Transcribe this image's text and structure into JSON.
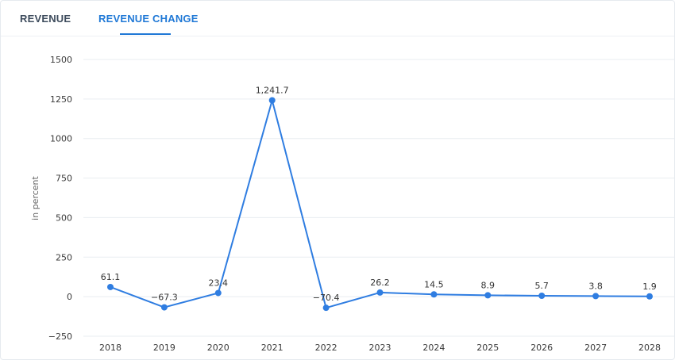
{
  "tabs": [
    {
      "label": "REVENUE",
      "active": false
    },
    {
      "label": "REVENUE CHANGE",
      "active": true
    }
  ],
  "colors": {
    "accent": "#1f78d6",
    "tab_inactive": "#3d4b5c",
    "series": "#2f7de1",
    "grid": "#e9edf1"
  },
  "chart_data": {
    "type": "line",
    "ylabel": "in percent",
    "ylim": [
      -250,
      1500
    ],
    "yticks": [
      {
        "value": 1500,
        "label": "1500"
      },
      {
        "value": 1250,
        "label": "1250"
      },
      {
        "value": 1000,
        "label": "1000"
      },
      {
        "value": 750,
        "label": "750"
      },
      {
        "value": 500,
        "label": "500"
      },
      {
        "value": 250,
        "label": "250"
      },
      {
        "value": 0,
        "label": "0"
      },
      {
        "value": -250,
        "label": "−250"
      }
    ],
    "grid": true,
    "categories": [
      "2018",
      "2019",
      "2020",
      "2021",
      "2022",
      "2023",
      "2024",
      "2025",
      "2026",
      "2027",
      "2028"
    ],
    "values": [
      61.1,
      -67.3,
      23.4,
      1241.7,
      -70.4,
      26.2,
      14.5,
      8.9,
      5.7,
      3.8,
      1.9
    ],
    "data_labels": [
      "61.1",
      "−67.3",
      "23.4",
      "1,241.7",
      "−70.4",
      "26.2",
      "14.5",
      "8.9",
      "5.7",
      "3.8",
      "1.9"
    ]
  }
}
